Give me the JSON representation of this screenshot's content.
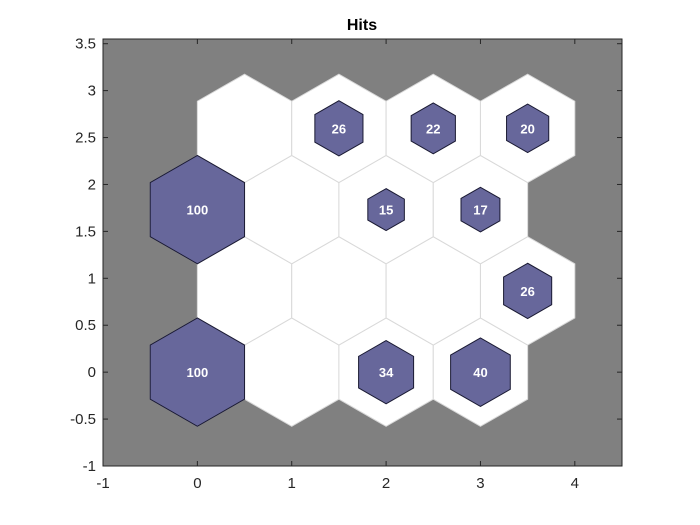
{
  "chart_data": {
    "type": "hexbin",
    "title": "Hits",
    "xlabel": "",
    "ylabel": "",
    "xlim": [
      -1,
      4.5
    ],
    "ylim": [
      -1,
      3.55
    ],
    "xticks": [
      -1,
      0,
      1,
      2,
      3,
      4
    ],
    "xtick_labels": [
      "-1",
      "0",
      "1",
      "2",
      "3",
      "4"
    ],
    "yticks": [
      -1,
      -0.5,
      0,
      0.5,
      1,
      1.5,
      2,
      2.5,
      3,
      3.5
    ],
    "ytick_labels": [
      "-1",
      "-0.5",
      "0",
      "0.5",
      "1",
      "1.5",
      "2",
      "2.5",
      "3",
      "3.5"
    ],
    "grid": false,
    "max_hits": 100,
    "neurons": [
      {
        "x": 0,
        "y": 0,
        "hits": 100
      },
      {
        "x": 1,
        "y": 0,
        "hits": 0
      },
      {
        "x": 2,
        "y": 0,
        "hits": 34
      },
      {
        "x": 3,
        "y": 0,
        "hits": 40
      },
      {
        "x": 0.5,
        "y": 0.866,
        "hits": 0
      },
      {
        "x": 1.5,
        "y": 0.866,
        "hits": 0
      },
      {
        "x": 2.5,
        "y": 0.866,
        "hits": 0
      },
      {
        "x": 3.5,
        "y": 0.866,
        "hits": 26
      },
      {
        "x": 0,
        "y": 1.732,
        "hits": 100
      },
      {
        "x": 1,
        "y": 1.732,
        "hits": 0
      },
      {
        "x": 2,
        "y": 1.732,
        "hits": 15
      },
      {
        "x": 3,
        "y": 1.732,
        "hits": 17
      },
      {
        "x": 0.5,
        "y": 2.598,
        "hits": 0
      },
      {
        "x": 1.5,
        "y": 2.598,
        "hits": 26
      },
      {
        "x": 2.5,
        "y": 2.598,
        "hits": 22
      },
      {
        "x": 3.5,
        "y": 2.598,
        "hits": 20
      }
    ],
    "colors": {
      "background": "#808080",
      "cell_fill": "#ffffff",
      "cell_edge": "#d9d9d9",
      "hit_fill": "#67679b",
      "hit_edge": "#1a1a33",
      "hit_text": "#ffffff",
      "axis": "#262626"
    }
  }
}
